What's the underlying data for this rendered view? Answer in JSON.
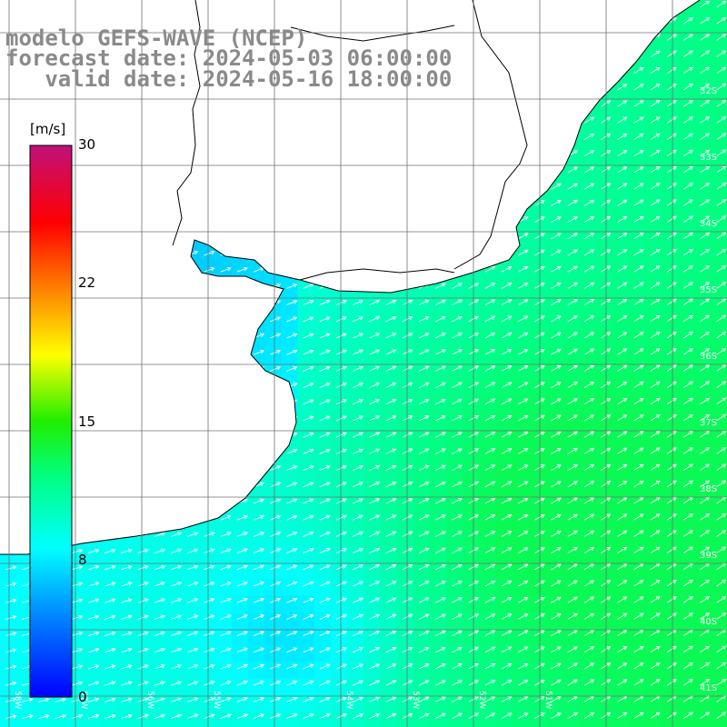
{
  "title": {
    "line1": "modelo GEFS-WAVE (NCEP)",
    "line2": "forecast date: 2024-05-03 06:00:00",
    "line3": "   valid date: 2024-05-16 18:00:00"
  },
  "colorbar": {
    "unit": "[m/s]",
    "ticks": [
      "30",
      "22",
      "15",
      "8",
      "0"
    ],
    "min": 0,
    "max": 30
  },
  "latitude_labels": [
    "32S",
    "33S",
    "34S",
    "35S",
    "36S",
    "37S",
    "38S",
    "39S",
    "40S",
    "41S"
  ],
  "longitude_labels": [
    "58W",
    "57W",
    "56W",
    "55W",
    "54W",
    "53W",
    "52W",
    "51W"
  ],
  "colors": {
    "land": "#ffffff",
    "coast": "#000000",
    "grid": "#707070",
    "arrows": "#ffffff",
    "title": "#8a8a8a"
  }
}
